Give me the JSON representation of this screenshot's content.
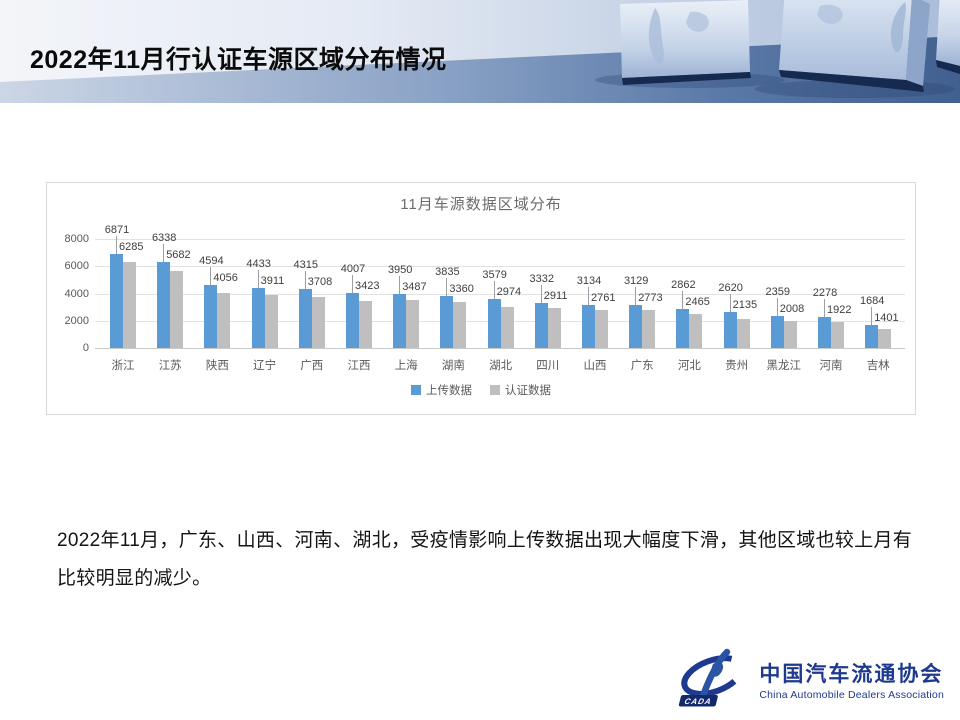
{
  "slide": {
    "title": "2022年11月行认证车源区域分布情况",
    "body_text": "2022年11月，广东、山西、河南、湖北，受疫情影响上传数据出现大幅度下滑，其他区域也较上月有比较明显的减少。"
  },
  "logo": {
    "name": "中国汽车流通协会",
    "subtitle": "China Automobile Dealers Association",
    "badge": "CADA",
    "color": "#1e3a8f"
  },
  "chart_data": {
    "type": "bar",
    "title": "11月车源数据区域分布",
    "categories": [
      "浙江",
      "江苏",
      "陕西",
      "辽宁",
      "广西",
      "江西",
      "上海",
      "湖南",
      "湖北",
      "四川",
      "山西",
      "广东",
      "河北",
      "贵州",
      "黑龙江",
      "河南",
      "吉林"
    ],
    "series": [
      {
        "name": "上传数据",
        "color": "#5B9BD5",
        "values": [
          6871,
          6338,
          4594,
          4433,
          4315,
          4007,
          3950,
          3835,
          3579,
          3332,
          3134,
          3129,
          2862,
          2620,
          2359,
          2278,
          1684
        ]
      },
      {
        "name": "认证数据",
        "color": "#BFBFBF",
        "values": [
          6285,
          5682,
          4056,
          3911,
          3708,
          3423,
          3487,
          3360,
          2974,
          2911,
          2761,
          2773,
          2465,
          2135,
          2008,
          1922,
          1401
        ]
      }
    ],
    "xlabel": "",
    "ylabel": "",
    "ylim": [
      0,
      8000
    ],
    "yticks": [
      0,
      2000,
      4000,
      6000,
      8000
    ],
    "grid": true,
    "legend_position": "bottom"
  }
}
